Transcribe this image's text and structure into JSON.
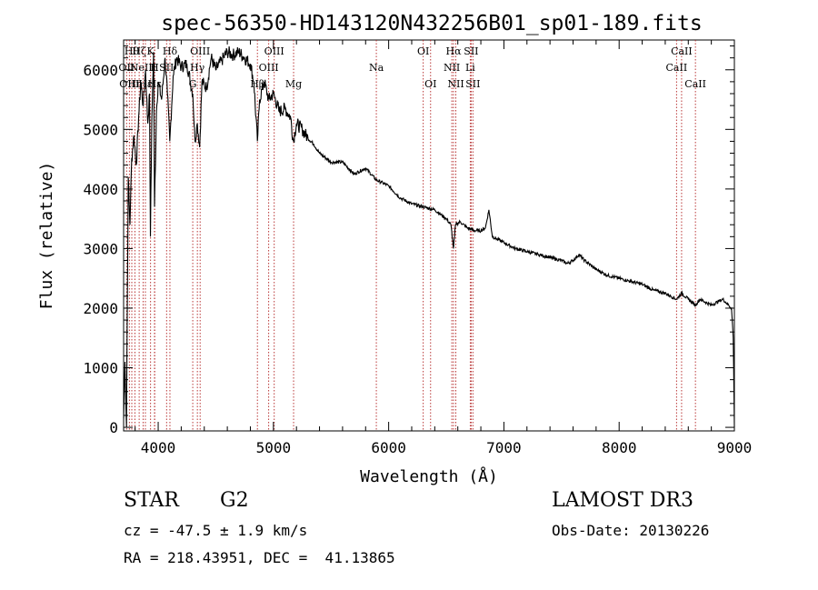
{
  "chart_data": {
    "type": "line",
    "title": "spec-56350-HD143120N432256B01_sp01-189.fits",
    "xlabel": "Wavelength (Å)",
    "ylabel": "Flux (relative)",
    "xlim": [
      3700,
      9000
    ],
    "ylim": [
      -60,
      6500
    ],
    "xticks": [
      4000,
      5000,
      6000,
      7000,
      8000,
      9000
    ],
    "yticks": [
      0,
      1000,
      2000,
      3000,
      4000,
      5000,
      6000
    ],
    "series": [
      {
        "name": "flux",
        "x": [
          3700,
          3712,
          3725,
          3740,
          3755,
          3770,
          3790,
          3810,
          3830,
          3850,
          3870,
          3890,
          3910,
          3925,
          3933,
          3945,
          3960,
          3968,
          3985,
          4000,
          4030,
          4060,
          4080,
          4101,
          4130,
          4160,
          4200,
          4250,
          4300,
          4320,
          4340,
          4360,
          4380,
          4420,
          4460,
          4500,
          4550,
          4600,
          4650,
          4700,
          4750,
          4800,
          4830,
          4861,
          4880,
          4920,
          4960,
          5000,
          5050,
          5100,
          5150,
          5172,
          5200,
          5250,
          5300,
          5350,
          5400,
          5500,
          5600,
          5700,
          5800,
          5893,
          5950,
          6000,
          6100,
          6200,
          6300,
          6400,
          6500,
          6540,
          6563,
          6580,
          6620,
          6680,
          6750,
          6800,
          6840,
          6870,
          6900,
          6950,
          7000,
          7100,
          7200,
          7300,
          7400,
          7500,
          7550,
          7600,
          7650,
          7700,
          7800,
          7900,
          8000,
          8100,
          8200,
          8300,
          8400,
          8450,
          8498,
          8542,
          8600,
          8662,
          8700,
          8800,
          8900,
          8950,
          8975,
          8990,
          9000
        ],
        "y": [
          150,
          1100,
          0,
          4200,
          3400,
          4500,
          4900,
          4400,
          5200,
          5800,
          5400,
          6000,
          5100,
          5600,
          3200,
          5200,
          6300,
          3700,
          5300,
          5800,
          5500,
          6200,
          5600,
          4800,
          5900,
          6200,
          6050,
          6100,
          5600,
          4800,
          5100,
          4700,
          5800,
          5700,
          6200,
          6000,
          6150,
          6300,
          6250,
          6300,
          6200,
          6100,
          5800,
          4800,
          5500,
          5800,
          5500,
          5600,
          5300,
          5350,
          5200,
          4800,
          5100,
          5000,
          4850,
          4750,
          4600,
          4450,
          4450,
          4250,
          4350,
          4150,
          4100,
          4050,
          3850,
          3750,
          3700,
          3650,
          3500,
          3400,
          3000,
          3400,
          3450,
          3350,
          3300,
          3300,
          3350,
          3650,
          3200,
          3150,
          3100,
          3000,
          2950,
          2900,
          2850,
          2800,
          2750,
          2800,
          2900,
          2800,
          2650,
          2550,
          2500,
          2450,
          2400,
          2300,
          2250,
          2200,
          2150,
          2250,
          2150,
          2050,
          2150,
          2050,
          2150,
          2050,
          2000,
          1500,
          0
        ]
      }
    ],
    "lines": [
      {
        "w": 3726,
        "label": "OII",
        "row": 1
      },
      {
        "w": 3750,
        "label": "OIII",
        "row": 2
      },
      {
        "w": 3771,
        "label": "Hθ",
        "row": 0
      },
      {
        "w": 3798,
        "label": "Hη",
        "row": 2
      },
      {
        "w": 3835,
        "label": "Hζ",
        "row": 0
      },
      {
        "w": 3869,
        "label": "NeIII",
        "row": 1
      },
      {
        "w": 3889,
        "label": "Hε",
        "row": 2
      },
      {
        "w": 3934,
        "label": "K",
        "row": 0
      },
      {
        "w": 3968,
        "label": "H",
        "row": 1
      },
      {
        "w": 3970,
        "label": "Hε",
        "row": 2
      },
      {
        "w": 4073,
        "label": "SII",
        "row": 1
      },
      {
        "w": 4102,
        "label": "Hδ",
        "row": 0
      },
      {
        "w": 4300,
        "label": "G",
        "row": 2
      },
      {
        "w": 4340,
        "label": "Hγ",
        "row": 1
      },
      {
        "w": 4364,
        "label": "OIII",
        "row": 0
      },
      {
        "w": 4861,
        "label": "Hβ",
        "row": 2
      },
      {
        "w": 4959,
        "label": "OIII",
        "row": 1
      },
      {
        "w": 5007,
        "label": "OIII",
        "row": 0
      },
      {
        "w": 5175,
        "label": "Mg",
        "row": 2
      },
      {
        "w": 5893,
        "label": "Na",
        "row": 1
      },
      {
        "w": 6300,
        "label": "OI",
        "row": 0
      },
      {
        "w": 6364,
        "label": "OI",
        "row": 2
      },
      {
        "w": 6548,
        "label": "NII",
        "row": 1
      },
      {
        "w": 6563,
        "label": "Hα",
        "row": 0
      },
      {
        "w": 6583,
        "label": "NII",
        "row": 2
      },
      {
        "w": 6708,
        "label": "Li",
        "row": 1
      },
      {
        "w": 6716,
        "label": "SII",
        "row": 0
      },
      {
        "w": 6731,
        "label": "SII",
        "row": 2
      },
      {
        "w": 8498,
        "label": "CaII",
        "row": 1
      },
      {
        "w": 8542,
        "label": "CaII",
        "row": 0
      },
      {
        "w": 8662,
        "label": "CaII",
        "row": 2
      }
    ]
  },
  "info": {
    "object_type": "STAR",
    "subclass": "G2",
    "survey": "LAMOST DR3",
    "cz": "cz = -47.5 ± 1.9 km/s",
    "obs_date": "Obs-Date: 20130226",
    "coords": "RA = 218.43951, DEC =  41.13865"
  }
}
